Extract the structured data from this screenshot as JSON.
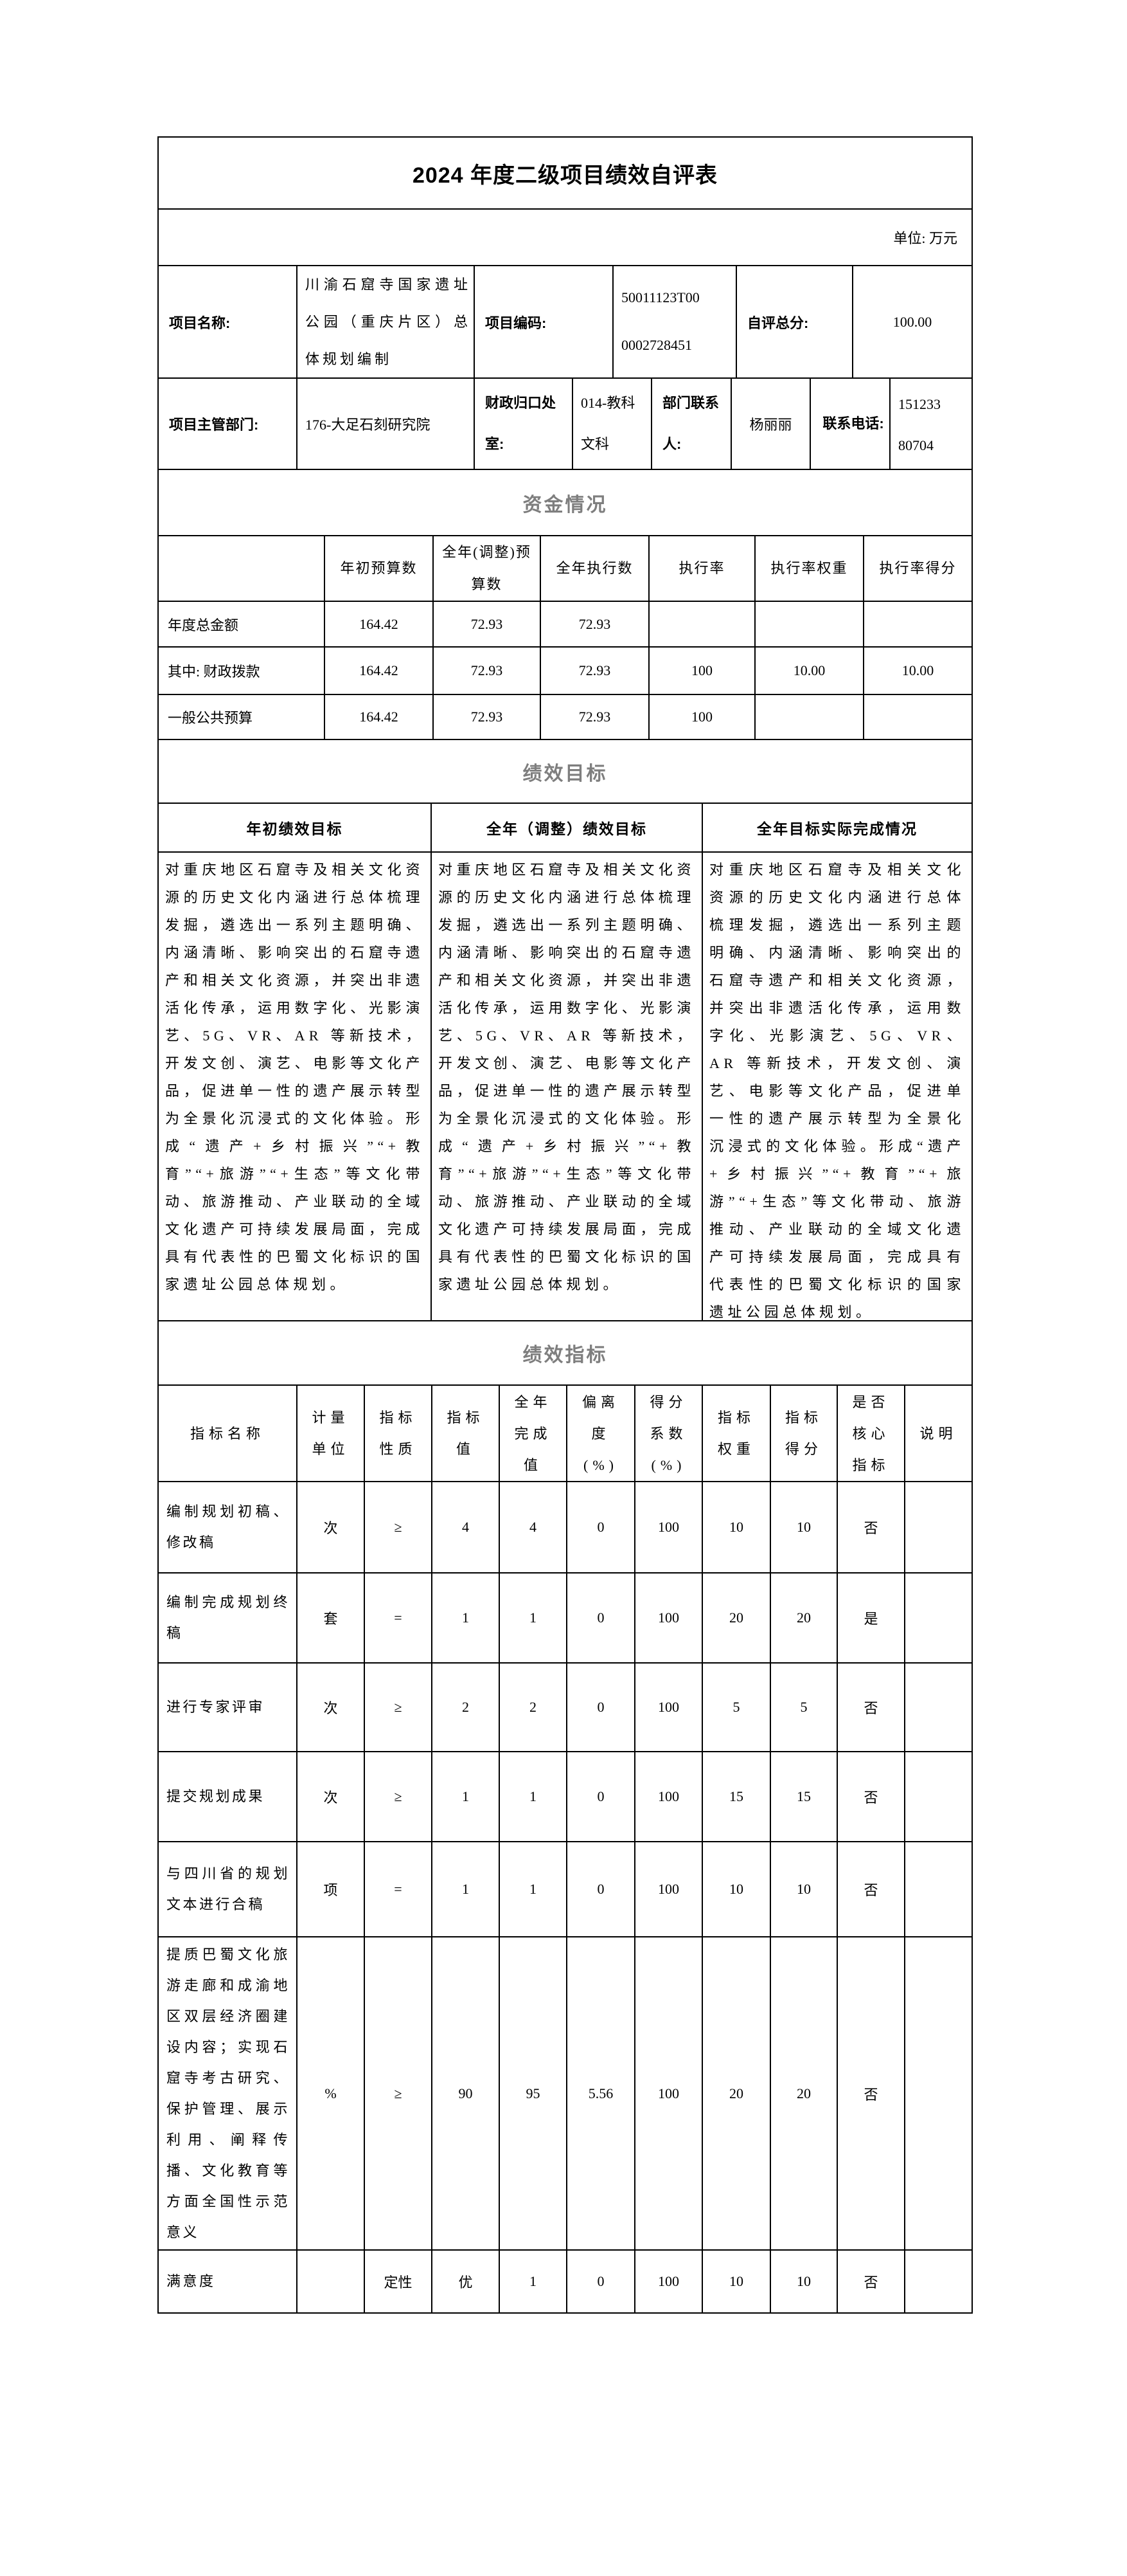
{
  "page": {
    "title": "2024 年度二级项目绩效自评表",
    "unit_note": "单位: 万元"
  },
  "info": {
    "project_name_label": "项目名称:",
    "project_name": "川渝石窟寺国家遗址公园（重庆片区）总体规划编制",
    "project_code_label": "项目编码:",
    "project_code_line1": "50011123T00",
    "project_code_line2": "0002728451",
    "self_score_label": "自评总分:",
    "self_score": "100.00",
    "dept_label": "项目主管部门:",
    "dept": "176-大足石刻研究院",
    "finance_office_label": "财政归口处室:",
    "finance_office": "014-教科文科",
    "contact_label": "部门联系人:",
    "contact": "杨丽丽",
    "phone_label": "联系电话:",
    "phone_line1": "151233",
    "phone_line2": "80704"
  },
  "funding": {
    "section_title": "资金情况",
    "headers": [
      "",
      "年初预算数",
      "全年(调整)预算数",
      "全年执行数",
      "执行率",
      "执行率权重",
      "执行率得分"
    ],
    "rows": [
      [
        "年度总金额",
        "164.42",
        "72.93",
        "72.93",
        "",
        "",
        ""
      ],
      [
        "其中: 财政拨款",
        "164.42",
        "72.93",
        "72.93",
        "100",
        "10.00",
        "10.00"
      ],
      [
        "一般公共预算",
        "164.42",
        "72.93",
        "72.93",
        "100",
        "",
        ""
      ]
    ]
  },
  "goals": {
    "section_title": "绩效目标",
    "columns": [
      {
        "header": "年初绩效目标",
        "text": "对重庆地区石窟寺及相关文化资源的历史文化内涵进行总体梳理发掘，遴选出一系列主题明确、内涵清晰、影响突出的石窟寺遗产和相关文化资源，并突出非遗活化传承，运用数字化、光影演艺、5G、VR、AR 等新技术，开发文创、演艺、电影等文化产品，促进单一性的遗产展示转型为全景化沉浸式的文化体验。形成“遗产+乡村振兴”“+教育”“+旅游”“+生态”等文化带动、旅游推动、产业联动的全域文化遗产可持续发展局面，完成具有代表性的巴蜀文化标识的国家遗址公园总体规划。"
      },
      {
        "header": "全年（调整）绩效目标",
        "text": "对重庆地区石窟寺及相关文化资源的历史文化内涵进行总体梳理发掘，遴选出一系列主题明确、内涵清晰、影响突出的石窟寺遗产和相关文化资源，并突出非遗活化传承，运用数字化、光影演艺、5G、VR、AR 等新技术，开发文创、演艺、电影等文化产品，促进单一性的遗产展示转型为全景化沉浸式的文化体验。形成“遗产+乡村振兴”“+教育”“+旅游”“+生态”等文化带动、旅游推动、产业联动的全域文化遗产可持续发展局面，完成具有代表性的巴蜀文化标识的国家遗址公园总体规划。"
      },
      {
        "header": "全年目标实际完成情况",
        "text": "对重庆地区石窟寺及相关文化资源的历史文化内涵进行总体梳理发掘，遴选出一系列主题明确、内涵清晰、影响突出的石窟寺遗产和相关文化资源，并突出非遗活化传承，运用数字化、光影演艺、5G、VR、AR 等新技术，开发文创、演艺、电影等文化产品，促进单一性的遗产展示转型为全景化沉浸式的文化体验。形成“遗产+乡村振兴”“+教育”“+旅游”“+生态”等文化带动、旅游推动、产业联动的全域文化遗产可持续发展局面，完成具有代表性的巴蜀文化标识的国家遗址公园总体规划。"
      }
    ]
  },
  "indicators": {
    "section_title": "绩效指标",
    "headers": [
      "指标名称",
      "计量单位",
      "指标性质",
      "指标值",
      "全年完成值",
      "偏离度(%)",
      "得分系数(%)",
      "指标权重",
      "指标得分",
      "是否核心指标",
      "说明"
    ],
    "rows": [
      [
        "编制规划初稿、修改稿",
        "次",
        "≥",
        "4",
        "4",
        "0",
        "100",
        "10",
        "10",
        "否",
        ""
      ],
      [
        "编制完成规划终稿",
        "套",
        "=",
        "1",
        "1",
        "0",
        "100",
        "20",
        "20",
        "是",
        ""
      ],
      [
        "进行专家评审",
        "次",
        "≥",
        "2",
        "2",
        "0",
        "100",
        "5",
        "5",
        "否",
        ""
      ],
      [
        "提交规划成果",
        "次",
        "≥",
        "1",
        "1",
        "0",
        "100",
        "15",
        "15",
        "否",
        ""
      ],
      [
        "与四川省的规划文本进行合稿",
        "项",
        "=",
        "1",
        "1",
        "0",
        "100",
        "10",
        "10",
        "否",
        ""
      ],
      [
        "提质巴蜀文化旅游走廊和成渝地区双层经济圈建设内容；实现石窟寺考古研究、保护管理、展示利用、阐释传播、文化教育等方面全国性示范意义",
        "%",
        "≥",
        "90",
        "95",
        "5.56",
        "100",
        "20",
        "20",
        "否",
        ""
      ],
      [
        "满意度",
        "",
        "定性",
        "优",
        "1",
        "0",
        "100",
        "10",
        "10",
        "否",
        ""
      ]
    ]
  }
}
